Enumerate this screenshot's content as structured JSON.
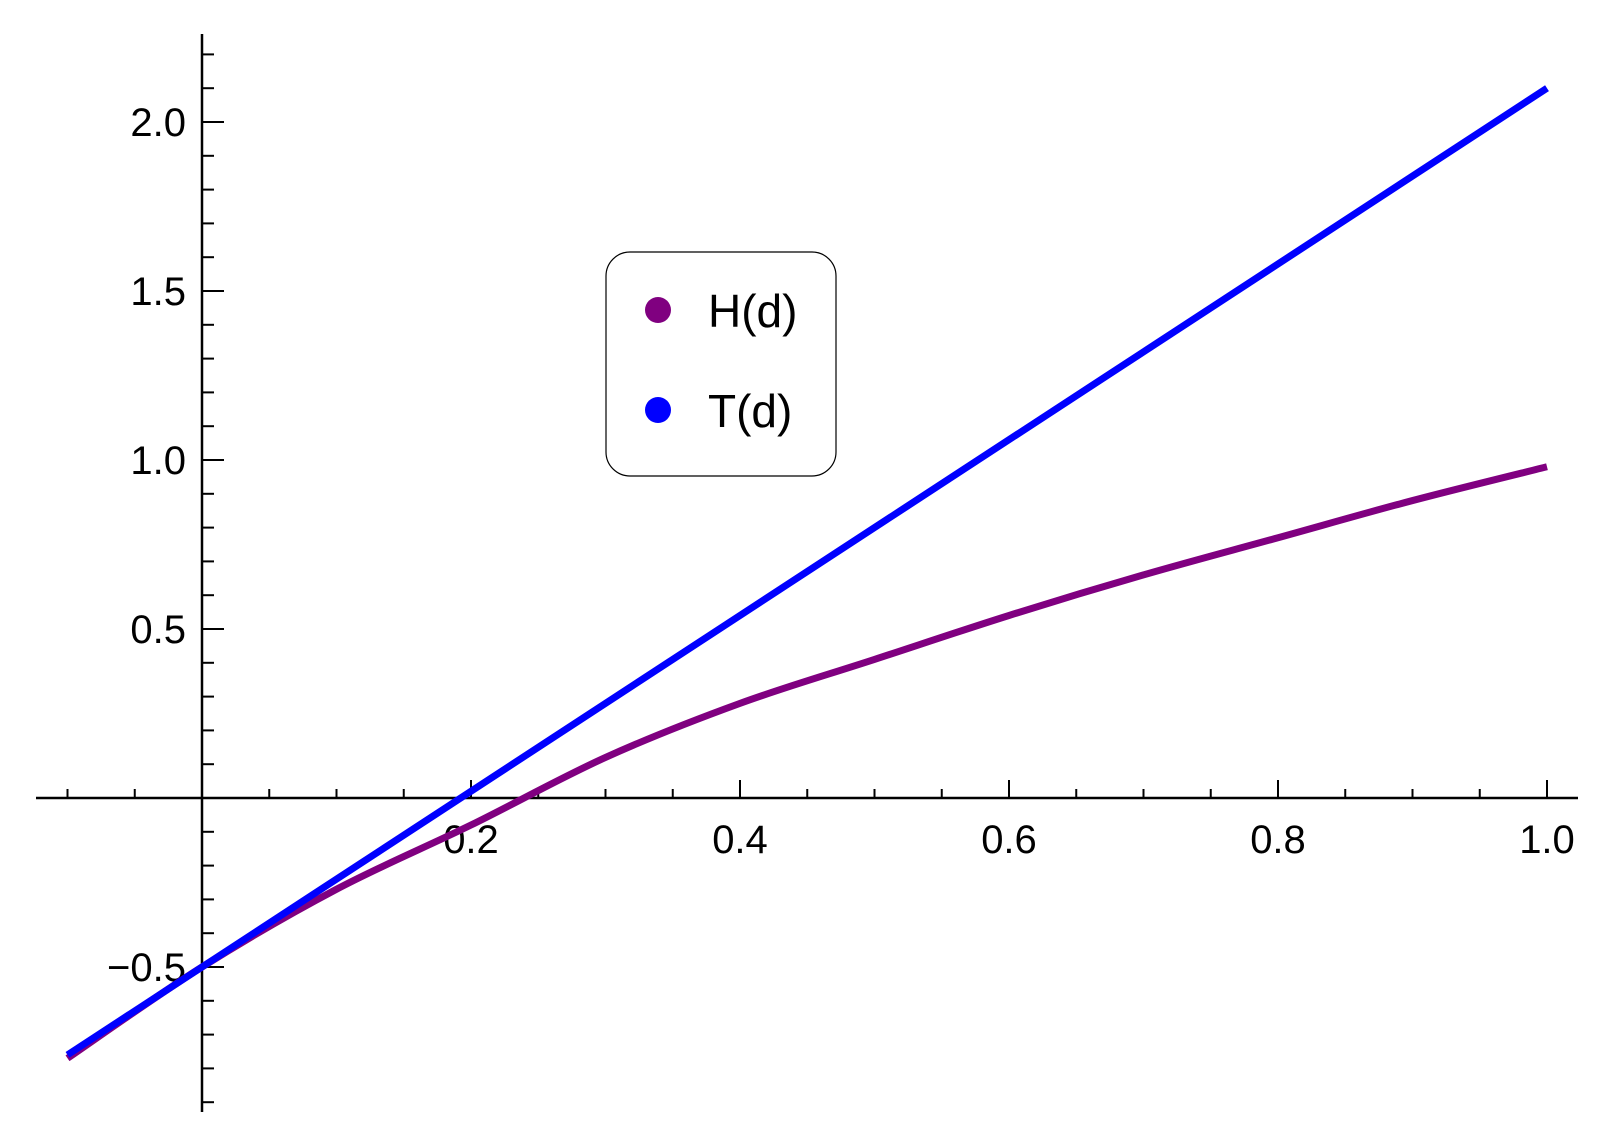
{
  "chart_data": {
    "type": "line",
    "title": "",
    "xlabel": "",
    "ylabel": "",
    "xlim": [
      -0.105,
      1.025
    ],
    "ylim": [
      -0.92,
      2.26
    ],
    "x_ticks": [
      0.2,
      0.4,
      0.6,
      0.8,
      1.0
    ],
    "x_tick_labels": [
      "0.2",
      "0.4",
      "0.6",
      "0.8",
      "1.0"
    ],
    "y_ticks": [
      -0.5,
      0.5,
      1.0,
      1.5,
      2.0
    ],
    "y_tick_labels": [
      "−0.5",
      "0.5",
      "1.0",
      "1.5",
      "2.0"
    ],
    "x_minor_step": 0.05,
    "y_minor_step": 0.1,
    "grid": false,
    "legend_position": "upper-center",
    "series": [
      {
        "name": "H(d)",
        "color": "#800080",
        "x": [
          -0.1,
          0.0,
          0.1,
          0.2,
          0.3,
          0.4,
          0.5,
          0.6,
          0.7,
          0.8,
          0.9,
          1.0
        ],
        "y": [
          -0.77,
          -0.5,
          -0.27,
          -0.08,
          0.12,
          0.28,
          0.41,
          0.54,
          0.66,
          0.77,
          0.88,
          0.98
        ]
      },
      {
        "name": "T(d)",
        "color": "#0000FF",
        "x": [
          -0.1,
          1.0
        ],
        "y": [
          -0.76,
          2.1
        ]
      }
    ]
  }
}
